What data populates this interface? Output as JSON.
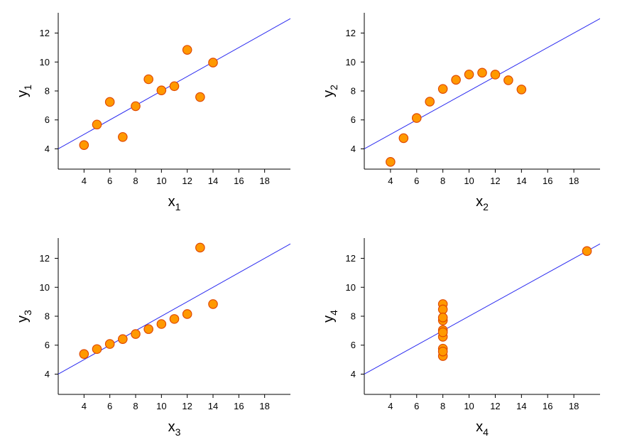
{
  "colors": {
    "marker_fill": "#ff9900",
    "marker_edge": "#e04a00",
    "regression_line": "#2a2af0",
    "axis": "#000000",
    "background": "#ffffff"
  },
  "chart_data": [
    {
      "type": "scatter",
      "xlabel": "x",
      "xlabel_sub": "1",
      "ylabel": "y",
      "ylabel_sub": "1",
      "xlim": [
        2,
        20
      ],
      "ylim": [
        2.6,
        13.4
      ],
      "xticks": [
        4,
        6,
        8,
        10,
        12,
        14,
        16,
        18
      ],
      "yticks": [
        4,
        6,
        8,
        10,
        12
      ],
      "grid": false,
      "x": [
        10,
        8,
        13,
        9,
        11,
        14,
        6,
        4,
        12,
        7,
        5
      ],
      "y": [
        8.04,
        6.95,
        7.58,
        8.81,
        8.33,
        9.96,
        7.24,
        4.26,
        10.84,
        4.82,
        5.68
      ],
      "fit": {
        "intercept": 3.0,
        "slope": 0.5
      }
    },
    {
      "type": "scatter",
      "xlabel": "x",
      "xlabel_sub": "2",
      "ylabel": "y",
      "ylabel_sub": "2",
      "xlim": [
        2,
        20
      ],
      "ylim": [
        2.6,
        13.4
      ],
      "xticks": [
        4,
        6,
        8,
        10,
        12,
        14,
        16,
        18
      ],
      "yticks": [
        4,
        6,
        8,
        10,
        12
      ],
      "grid": false,
      "x": [
        10,
        8,
        13,
        9,
        11,
        14,
        6,
        4,
        12,
        7,
        5
      ],
      "y": [
        9.14,
        8.14,
        8.74,
        8.77,
        9.26,
        8.1,
        6.13,
        3.1,
        9.13,
        7.26,
        4.74
      ],
      "fit": {
        "intercept": 3.0,
        "slope": 0.5
      }
    },
    {
      "type": "scatter",
      "xlabel": "x",
      "xlabel_sub": "3",
      "ylabel": "y",
      "ylabel_sub": "3",
      "xlim": [
        2,
        20
      ],
      "ylim": [
        2.6,
        13.4
      ],
      "xticks": [
        4,
        6,
        8,
        10,
        12,
        14,
        16,
        18
      ],
      "yticks": [
        4,
        6,
        8,
        10,
        12
      ],
      "grid": false,
      "x": [
        10,
        8,
        13,
        9,
        11,
        14,
        6,
        4,
        12,
        7,
        5
      ],
      "y": [
        7.46,
        6.77,
        12.74,
        7.11,
        7.81,
        8.84,
        6.08,
        5.39,
        8.15,
        6.42,
        5.73
      ],
      "fit": {
        "intercept": 3.0,
        "slope": 0.5
      }
    },
    {
      "type": "scatter",
      "xlabel": "x",
      "xlabel_sub": "4",
      "ylabel": "y",
      "ylabel_sub": "4",
      "xlim": [
        2,
        20
      ],
      "ylim": [
        2.6,
        13.4
      ],
      "xticks": [
        4,
        6,
        8,
        10,
        12,
        14,
        16,
        18
      ],
      "yticks": [
        4,
        6,
        8,
        10,
        12
      ],
      "grid": false,
      "x": [
        8,
        8,
        8,
        8,
        8,
        8,
        8,
        19,
        8,
        8,
        8
      ],
      "y": [
        6.58,
        5.76,
        7.71,
        8.84,
        8.47,
        7.04,
        5.25,
        12.5,
        5.56,
        7.91,
        6.89
      ],
      "fit": {
        "intercept": 3.0,
        "slope": 0.5
      }
    }
  ]
}
